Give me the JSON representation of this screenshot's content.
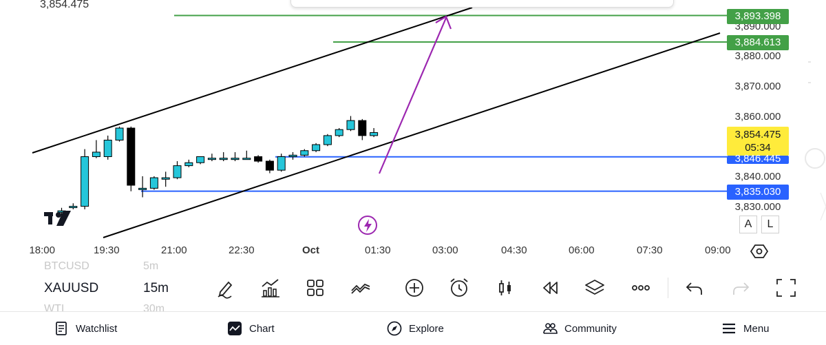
{
  "chart": {
    "top_left_price": "3,854.475",
    "axis_prices": [
      "3,890.000",
      "3,880.000",
      "3,870.000",
      "3,860.000",
      "3,840.000",
      "3,830.000"
    ],
    "labels": {
      "green_upper": "3,893.398",
      "green_lower": "3,884.613",
      "current_price": "3,854.475",
      "countdown": "05:34",
      "blue_upper": "3,846.445",
      "blue_lower": "3,835.030"
    },
    "time_ticks": [
      "18:00",
      "19:30",
      "21:00",
      "22:30",
      "Oct",
      "01:30",
      "03:00",
      "04:30",
      "06:00",
      "07:30",
      "09:00"
    ],
    "scale_buttons": {
      "auto": "A",
      "log": "L"
    },
    "colors": {
      "up": "#26c6da",
      "down": "#000000",
      "green": "#43a047",
      "blue": "#2962ff",
      "arrow": "#9c27b0",
      "current": "#ffeb3b"
    },
    "candles": [
      {
        "o": 3828.0,
        "h": 3829.5,
        "l": 3826.0,
        "c": 3828.5
      },
      {
        "o": 3830.0,
        "h": 3831.0,
        "l": 3829.0,
        "c": 3830.0
      },
      {
        "o": 3830.0,
        "h": 3849.0,
        "l": 3829.0,
        "c": 3846.5
      },
      {
        "o": 3846.5,
        "h": 3852.0,
        "l": 3846.0,
        "c": 3848.0
      },
      {
        "o": 3846.5,
        "h": 3853.5,
        "l": 3845.5,
        "c": 3852.0
      },
      {
        "o": 3852.0,
        "h": 3856.5,
        "l": 3851.5,
        "c": 3856.0
      },
      {
        "o": 3856.0,
        "h": 3856.5,
        "l": 3835.0,
        "c": 3837.0
      },
      {
        "o": 3836.0,
        "h": 3840.0,
        "l": 3833.0,
        "c": 3836.0
      },
      {
        "o": 3836.0,
        "h": 3840.0,
        "l": 3835.5,
        "c": 3839.5
      },
      {
        "o": 3839.0,
        "h": 3841.5,
        "l": 3836.5,
        "c": 3839.5
      },
      {
        "o": 3839.5,
        "h": 3845.0,
        "l": 3839.0,
        "c": 3843.5
      },
      {
        "o": 3843.5,
        "h": 3845.5,
        "l": 3843.0,
        "c": 3844.5
      },
      {
        "o": 3844.5,
        "h": 3846.5,
        "l": 3844.0,
        "c": 3846.5
      },
      {
        "o": 3846.0,
        "h": 3847.5,
        "l": 3845.0,
        "c": 3846.0
      },
      {
        "o": 3846.0,
        "h": 3848.0,
        "l": 3845.0,
        "c": 3846.0
      },
      {
        "o": 3846.0,
        "h": 3848.0,
        "l": 3845.0,
        "c": 3846.0
      },
      {
        "o": 3846.0,
        "h": 3848.5,
        "l": 3845.5,
        "c": 3846.0
      },
      {
        "o": 3846.5,
        "h": 3847.0,
        "l": 3844.5,
        "c": 3845.0
      },
      {
        "o": 3845.0,
        "h": 3845.5,
        "l": 3841.0,
        "c": 3842.0
      },
      {
        "o": 3842.0,
        "h": 3847.5,
        "l": 3841.5,
        "c": 3846.5
      },
      {
        "o": 3846.5,
        "h": 3848.0,
        "l": 3845.5,
        "c": 3847.0
      },
      {
        "o": 3847.0,
        "h": 3849.0,
        "l": 3846.5,
        "c": 3848.5
      },
      {
        "o": 3848.5,
        "h": 3851.0,
        "l": 3848.0,
        "c": 3850.5
      },
      {
        "o": 3850.5,
        "h": 3854.0,
        "l": 3850.0,
        "c": 3853.5
      },
      {
        "o": 3853.5,
        "h": 3856.0,
        "l": 3853.0,
        "c": 3855.5
      },
      {
        "o": 3855.5,
        "h": 3860.0,
        "l": 3855.0,
        "c": 3858.5
      },
      {
        "o": 3858.5,
        "h": 3859.0,
        "l": 3852.0,
        "c": 3853.5
      },
      {
        "o": 3853.5,
        "h": 3856.0,
        "l": 3853.0,
        "c": 3854.5
      }
    ]
  },
  "toolbar": {
    "symbols": {
      "above": "BTCUSD",
      "current": "XAUUSD",
      "below": "WTI"
    },
    "intervals": {
      "above": "5m",
      "current": "15m",
      "below": "30m"
    },
    "tools": [
      "pencil-icon",
      "indicators-icon",
      "templates-icon",
      "compare-icon",
      "add-icon",
      "alarm-icon",
      "candle-icon",
      "replay-icon",
      "layers-icon",
      "more-icon",
      "undo-icon",
      "redo-icon",
      "fullscreen-icon"
    ]
  },
  "nav": {
    "watchlist": "Watchlist",
    "chart": "Chart",
    "explore": "Explore",
    "community": "Community",
    "menu": "Menu"
  }
}
